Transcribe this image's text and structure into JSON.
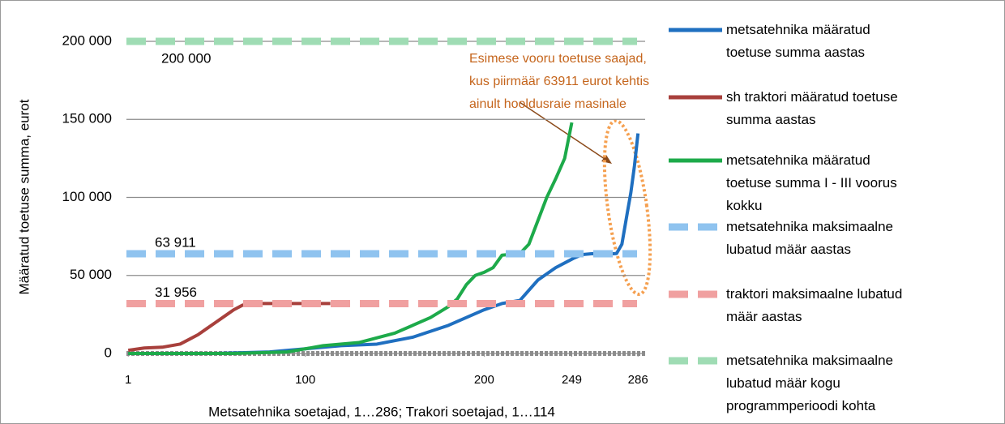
{
  "chart_data": {
    "type": "line",
    "y_axis_label": "Määratud toetuse summa, eurot",
    "x_axis_label": "Metsatehnika soetajad, 1…286; Trakori soetajad, 1…114",
    "xlim": [
      0,
      290
    ],
    "xticks": [
      1,
      100,
      200,
      249,
      286
    ],
    "ylim": [
      0,
      200000
    ],
    "yticks": [
      {
        "value": 0,
        "label": "0"
      },
      {
        "value": 50000,
        "label": "50 000"
      },
      {
        "value": 100000,
        "label": "100 000"
      },
      {
        "value": 150000,
        "label": "150 000"
      },
      {
        "value": 200000,
        "label": "200 000"
      }
    ],
    "grid": true,
    "legend": "right",
    "annotation_lines": [
      "Esimese vooru toetuse saajad,",
      "kus piirmäär 63911 eurot kehtis",
      "ainult hooldusraie masinale"
    ],
    "annotation_color": "#c5651c",
    "series": [
      {
        "name": "metsatehnika määratud toetuse summa aastas",
        "color": "#1f6fc0",
        "x": [
          1,
          50,
          80,
          100,
          120,
          140,
          160,
          180,
          200,
          210,
          220,
          230,
          240,
          250,
          255,
          260,
          272,
          274,
          277,
          280,
          282,
          284,
          286
        ],
        "values": [
          0,
          0,
          1000,
          3000,
          5000,
          6000,
          10400,
          18000,
          28000,
          32000,
          34000,
          47000,
          55000,
          61000,
          63400,
          63911,
          63911,
          64000,
          70000,
          90000,
          103000,
          120000,
          141000
        ]
      },
      {
        "name": "sh traktori määratud toetuse summa aastas",
        "color": "#a8403c",
        "x": [
          1,
          10,
          20,
          30,
          35,
          40,
          45,
          50,
          55,
          60,
          65,
          70,
          80,
          114
        ],
        "values": [
          2000,
          3500,
          4000,
          6000,
          9000,
          12000,
          16000,
          20000,
          24000,
          28000,
          31000,
          32000,
          32000,
          32000
        ]
      },
      {
        "name": "metsatehnika määratud toetuse summa I - III voorus kokku",
        "color": "#1daa4a",
        "x": [
          1,
          60,
          90,
          100,
          110,
          130,
          150,
          170,
          180,
          185,
          190,
          195,
          200,
          205,
          210,
          220,
          225,
          230,
          235,
          240,
          245,
          249
        ],
        "values": [
          0,
          0,
          1000,
          3000,
          5000,
          7000,
          13000,
          23000,
          30000,
          35000,
          44000,
          50000,
          52000,
          55000,
          63000,
          64000,
          70000,
          85000,
          100000,
          112000,
          125000,
          148000
        ]
      },
      {
        "name": "metsatehnika maksimaalne lubatud määr aastas",
        "color": "#8fc3ef",
        "dashed": true,
        "value": 63911,
        "value_label": "63 911"
      },
      {
        "name": "traktori maksimaalne lubatud määr aastas",
        "color": "#f0a0a0",
        "dashed": true,
        "value": 31956,
        "value_label": "31 956"
      },
      {
        "name": "metsatehnika maksimaalne lubatud määr kogu programmperioodi kohta",
        "color": "#9fdcb4",
        "dashed": true,
        "value": 200000,
        "value_label": "200 000"
      }
    ]
  }
}
